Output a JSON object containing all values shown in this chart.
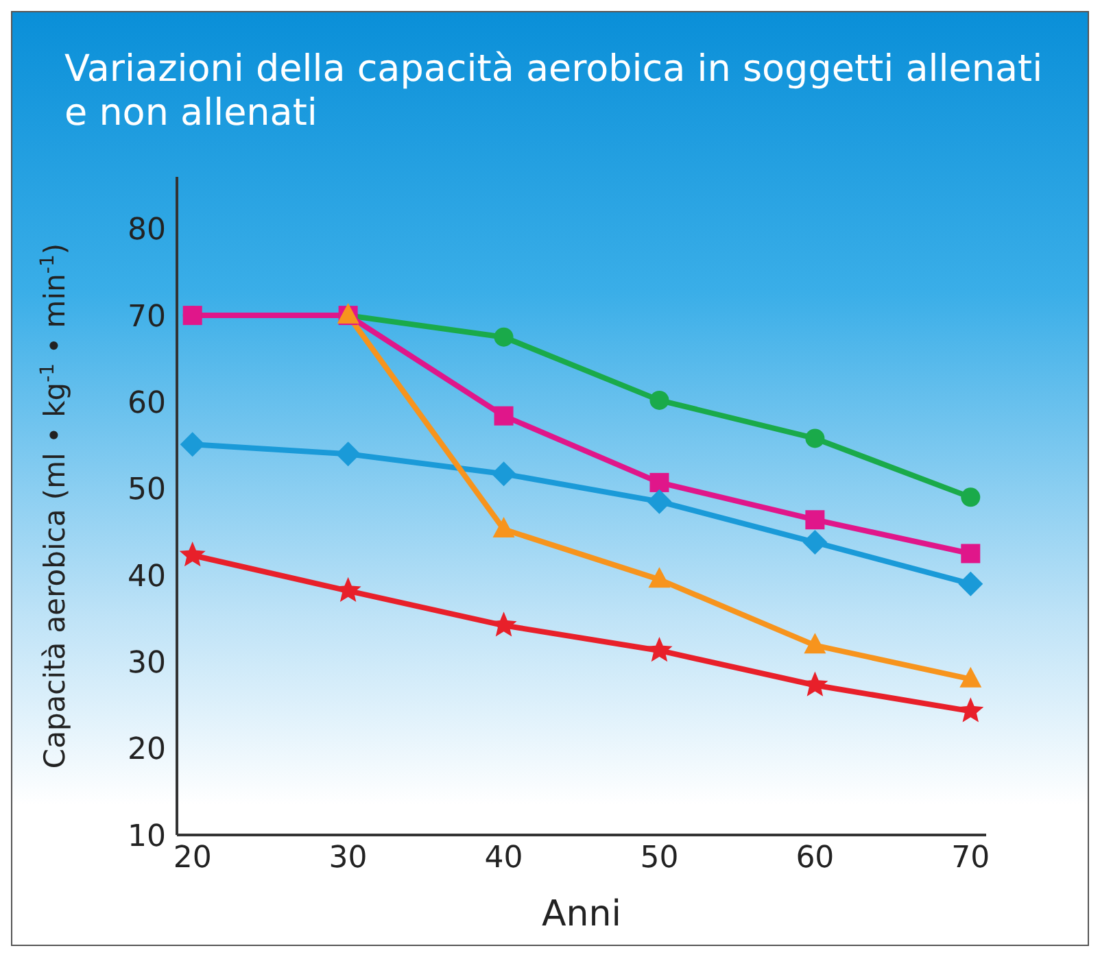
{
  "chart_data": {
    "type": "line",
    "title": "Variazioni della capacità aerobica in soggetti allenati e non allenati",
    "xlabel": "Anni",
    "ylabel": "Capacità aerobica  (ml • kg$^{-1}$ • min$^{-1}$)",
    "x": [
      20,
      30,
      40,
      50,
      60,
      70
    ],
    "xlim": [
      19,
      71
    ],
    "xticks": [
      20,
      30,
      40,
      50,
      60,
      70
    ],
    "ylim": [
      10,
      86
    ],
    "yticks": [
      10,
      20,
      30,
      40,
      50,
      60,
      70,
      80
    ],
    "grid": false,
    "legend": false,
    "line_style": "solid",
    "series": [
      {
        "color": "#1aaa4a",
        "marker": "circle",
        "values": [
          70,
          70,
          67.5,
          60.2,
          55.8,
          49
        ]
      },
      {
        "color": "#e0168a",
        "marker": "square",
        "values": [
          70,
          70,
          58.4,
          50.7,
          46.4,
          42.5
        ]
      },
      {
        "color": "#1a9ad8",
        "marker": "diamond",
        "values": [
          55.1,
          54,
          51.7,
          48.5,
          43.8,
          39
        ]
      },
      {
        "color": "#f7941d",
        "marker": "triangle",
        "values": [
          null,
          70,
          45.3,
          39.5,
          31.9,
          28
        ]
      },
      {
        "color": "#e8202a",
        "marker": "star",
        "values": [
          42.3,
          38.2,
          34.2,
          31.3,
          27.3,
          24.3
        ]
      }
    ]
  }
}
